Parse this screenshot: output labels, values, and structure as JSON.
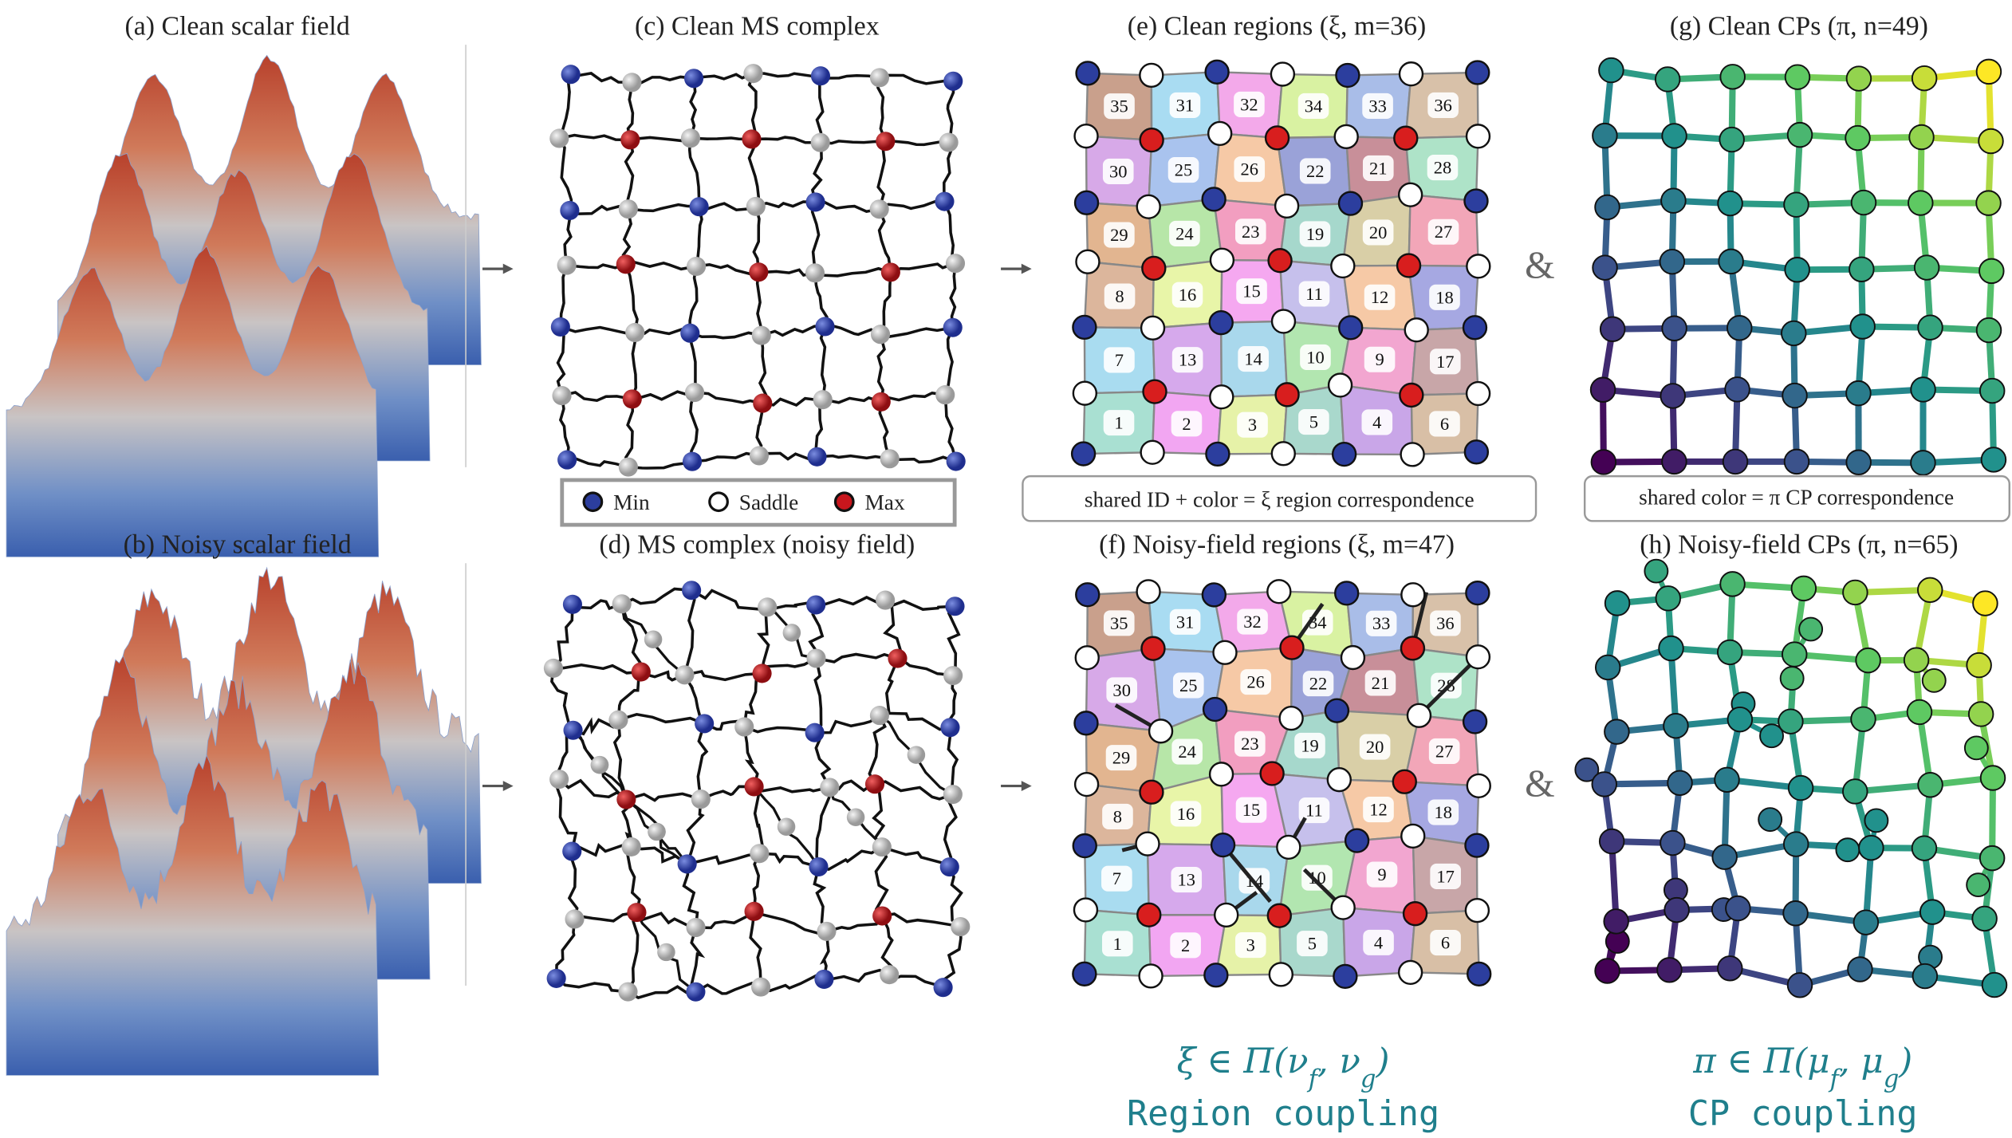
{
  "panels": {
    "a": "(a) Clean scalar field",
    "b": "(b) Noisy scalar field",
    "c": "(c) Clean MS complex",
    "d": "(d) MS complex (noisy field)",
    "e": "(e) Clean regions (ξ, m=36)",
    "f": "(f) Noisy-field regions (ξ, m=47)",
    "g": "(g) Clean CPs (π, n=49)",
    "h": "(h) Noisy-field CPs (π, n=65)"
  },
  "legend": {
    "items": [
      {
        "label": "Min",
        "color": "#2c3e9e"
      },
      {
        "label": "Saddle",
        "color": "#ffffff"
      },
      {
        "label": "Max",
        "color": "#c8161d"
      }
    ]
  },
  "notes": {
    "regions": "shared ID + color = ξ region correspondence",
    "cps": "shared color = π CP correspondence"
  },
  "connectors": [
    "&",
    "&"
  ],
  "regions": {
    "rows": [
      [
        {
          "id": 35,
          "color": "#c9a08c"
        },
        {
          "id": 31,
          "color": "#a9dcf2"
        },
        {
          "id": 32,
          "color": "#f3a9ea"
        },
        {
          "id": 34,
          "color": "#d9f2a2"
        },
        {
          "id": 33,
          "color": "#a9bde8"
        },
        {
          "id": 36,
          "color": "#d8c1a9"
        }
      ],
      [
        {
          "id": 30,
          "color": "#d7a9e8"
        },
        {
          "id": 25,
          "color": "#a9c3ee"
        },
        {
          "id": 26,
          "color": "#f6c9a6"
        },
        {
          "id": 22,
          "color": "#9aa2d8"
        },
        {
          "id": 21,
          "color": "#c88f99"
        },
        {
          "id": 28,
          "color": "#aee3c8"
        }
      ],
      [
        {
          "id": 29,
          "color": "#e2b590"
        },
        {
          "id": 24,
          "color": "#b7e6a8"
        },
        {
          "id": 23,
          "color": "#f29ec0"
        },
        {
          "id": 19,
          "color": "#a6d8cc"
        },
        {
          "id": 20,
          "color": "#d9cfa7"
        },
        {
          "id": 27,
          "color": "#f2a6b8"
        }
      ],
      [
        {
          "id": 8,
          "color": "#dcb69c"
        },
        {
          "id": 16,
          "color": "#e8f5a8"
        },
        {
          "id": 15,
          "color": "#f5a8f0"
        },
        {
          "id": 11,
          "color": "#c6c0ec"
        },
        {
          "id": 12,
          "color": "#f6c9a6"
        },
        {
          "id": 18,
          "color": "#a6a8e2"
        }
      ],
      [
        {
          "id": 7,
          "color": "#a9dcf0"
        },
        {
          "id": 13,
          "color": "#d6a9ec"
        },
        {
          "id": 14,
          "color": "#a9d8ec"
        },
        {
          "id": 10,
          "color": "#b2e6b0"
        },
        {
          "id": 9,
          "color": "#f2a6d0"
        },
        {
          "id": 17,
          "color": "#c8a6a8"
        }
      ],
      [
        {
          "id": 1,
          "color": "#a9e0d2"
        },
        {
          "id": 2,
          "color": "#f2a6f2"
        },
        {
          "id": 3,
          "color": "#e6f2a8"
        },
        {
          "id": 5,
          "color": "#a9d8cc"
        },
        {
          "id": 4,
          "color": "#c9a6e8"
        },
        {
          "id": 6,
          "color": "#d8bfa6"
        }
      ]
    ]
  },
  "couplings": [
    {
      "formula": [
        {
          "text": "ξ ∈ Π(ν"
        },
        {
          "sub": "f"
        },
        {
          "text": ", ν"
        },
        {
          "sub": "g"
        },
        {
          "text": ")"
        }
      ],
      "label": "Region coupling"
    },
    {
      "formula": [
        {
          "text": "π ∈ Π(μ"
        },
        {
          "sub": "f"
        },
        {
          "text": ", μ"
        },
        {
          "sub": "g"
        },
        {
          "text": ")"
        }
      ],
      "label": "CP coupling"
    }
  ]
}
